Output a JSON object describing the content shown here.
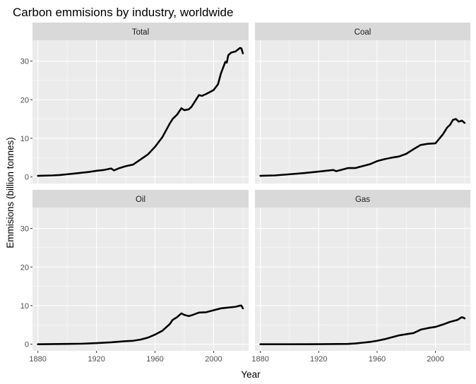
{
  "chart_data": {
    "type": "line",
    "title": "Carbon emmisions by industry, worldwide",
    "xlabel": "Year",
    "ylabel": "Emmisions (billion tonnes)",
    "xlim": [
      1876.3,
      2023.9
    ],
    "ylim": [
      -1.7,
      35.4
    ],
    "x_ticks": [
      1880,
      1920,
      1960,
      2000
    ],
    "y_ticks": [
      0,
      10,
      20,
      30
    ],
    "grid": true,
    "layout": "facet-2x2",
    "colors": {
      "panel_bg": "#ebebeb",
      "strip_bg": "#d9d9d9",
      "grid": "#ffffff",
      "line": "#000000"
    },
    "facets": [
      {
        "name": "Total",
        "x": [
          1880,
          1885,
          1890,
          1895,
          1900,
          1905,
          1910,
          1915,
          1920,
          1925,
          1930,
          1932,
          1935,
          1940,
          1945,
          1950,
          1955,
          1960,
          1965,
          1970,
          1972,
          1975,
          1978,
          1980,
          1983,
          1985,
          1990,
          1992,
          1995,
          2000,
          2003,
          2005,
          2008,
          2009,
          2010,
          2012,
          2015,
          2018,
          2019,
          2020
        ],
        "values": [
          0.3,
          0.35,
          0.4,
          0.5,
          0.7,
          0.9,
          1.1,
          1.3,
          1.6,
          1.8,
          2.2,
          1.7,
          2.2,
          2.8,
          3.2,
          4.5,
          5.8,
          7.8,
          10.3,
          13.8,
          15,
          16.1,
          17.8,
          17.3,
          17.5,
          18.2,
          21.2,
          21.0,
          21.5,
          22.5,
          24.0,
          26.8,
          29.8,
          29.6,
          31.5,
          32.2,
          32.5,
          33.4,
          33.3,
          32.0
        ]
      },
      {
        "name": "Coal",
        "x": [
          1880,
          1890,
          1900,
          1910,
          1920,
          1925,
          1930,
          1932,
          1935,
          1940,
          1945,
          1950,
          1955,
          1960,
          1965,
          1970,
          1975,
          1980,
          1985,
          1990,
          1995,
          2000,
          2005,
          2008,
          2010,
          2012,
          2014,
          2016,
          2018,
          2020
        ],
        "values": [
          0.3,
          0.4,
          0.7,
          1.0,
          1.4,
          1.6,
          1.8,
          1.5,
          1.8,
          2.3,
          2.3,
          2.8,
          3.3,
          4.1,
          4.6,
          5.0,
          5.3,
          6.0,
          7.2,
          8.3,
          8.6,
          8.7,
          11.0,
          12.8,
          13.5,
          14.8,
          15.0,
          14.3,
          14.6,
          14.0
        ]
      },
      {
        "name": "Oil",
        "x": [
          1880,
          1890,
          1900,
          1910,
          1920,
          1930,
          1940,
          1945,
          1950,
          1955,
          1960,
          1965,
          1970,
          1972,
          1975,
          1978,
          1980,
          1983,
          1985,
          1990,
          1995,
          2000,
          2005,
          2010,
          2015,
          2018,
          2019,
          2020
        ],
        "values": [
          0.0,
          0.05,
          0.1,
          0.15,
          0.3,
          0.5,
          0.8,
          0.9,
          1.2,
          1.7,
          2.5,
          3.5,
          5.2,
          6.3,
          7.0,
          8.0,
          7.6,
          7.3,
          7.5,
          8.2,
          8.3,
          8.8,
          9.3,
          9.5,
          9.7,
          10.0,
          10.0,
          9.3
        ]
      },
      {
        "name": "Gas",
        "x": [
          1880,
          1900,
          1920,
          1940,
          1945,
          1950,
          1955,
          1960,
          1965,
          1970,
          1975,
          1980,
          1985,
          1990,
          1995,
          2000,
          2005,
          2010,
          2015,
          2018,
          2019,
          2020
        ],
        "values": [
          0.0,
          0.0,
          0.02,
          0.1,
          0.2,
          0.4,
          0.6,
          0.9,
          1.3,
          1.8,
          2.3,
          2.6,
          2.9,
          3.8,
          4.2,
          4.5,
          5.1,
          5.8,
          6.3,
          7.0,
          6.9,
          6.7
        ]
      }
    ]
  }
}
